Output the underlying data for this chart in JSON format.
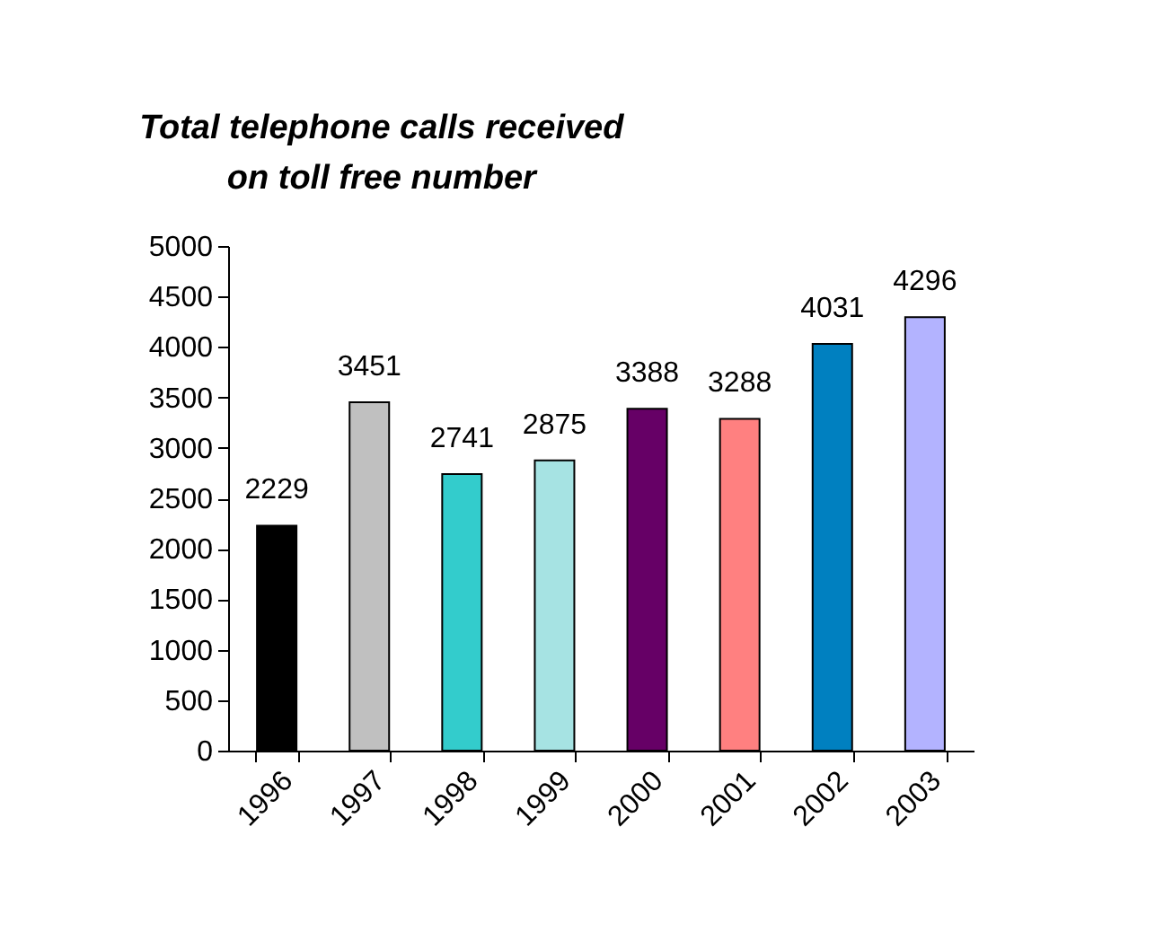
{
  "chart_data": {
    "type": "bar",
    "title": "Total telephone calls received\non toll free number",
    "categories": [
      "1996",
      "1997",
      "1998",
      "1999",
      "2000",
      "2001",
      "2002",
      "2003"
    ],
    "values": [
      2229,
      3451,
      2741,
      2875,
      3388,
      3288,
      4031,
      4296
    ],
    "colors": [
      "#000000",
      "#c0c0c0",
      "#33cccc",
      "#a6e3e3",
      "#660066",
      "#ff8080",
      "#0080c0",
      "#b3b3ff"
    ],
    "ylim": [
      0,
      5000
    ],
    "yticks": [
      0,
      500,
      1000,
      1500,
      2000,
      2500,
      3000,
      3500,
      4000,
      4500,
      5000
    ],
    "data_labels": true,
    "grid": false
  }
}
